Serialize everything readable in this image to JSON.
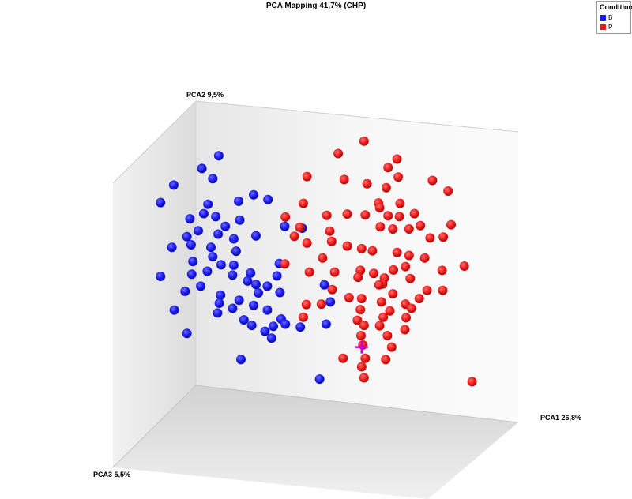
{
  "chart_data": {
    "type": "scatter",
    "title": "PCA Mapping 41,7% (CHP)",
    "axes": {
      "pca1_label": "PCA1 26,8%",
      "pca2_label": "PCA2 9,5%",
      "pca3_label": "PCA3 5,5%"
    },
    "legend": {
      "title": "Condition",
      "placement": "top-right",
      "entries": [
        {
          "name": "B",
          "color": "#1a1aee"
        },
        {
          "name": "P",
          "color": "#ee1a1a"
        }
      ]
    },
    "x_range": [
      0,
      100
    ],
    "y_range": [
      0,
      100
    ],
    "note_units": "projected screen-plane PCA scores (relative)",
    "series": [
      {
        "name": "B",
        "color": "#1a1aee",
        "points": [
          [
            33.8,
            74.6
          ],
          [
            31.0,
            71.6
          ],
          [
            32.8,
            69.2
          ],
          [
            26.3,
            67.7
          ],
          [
            24.1,
            63.6
          ],
          [
            39.6,
            65.4
          ],
          [
            42.0,
            64.3
          ],
          [
            37.1,
            63.9
          ],
          [
            32.0,
            63.2
          ],
          [
            31.3,
            61.0
          ],
          [
            29.0,
            59.8
          ],
          [
            33.3,
            60.3
          ],
          [
            37.3,
            59.5
          ],
          [
            34.9,
            58.0
          ],
          [
            30.4,
            57.0
          ],
          [
            28.5,
            55.6
          ],
          [
            33.7,
            56.2
          ],
          [
            40.0,
            55.8
          ],
          [
            44.8,
            58.0
          ],
          [
            47.7,
            57.6
          ],
          [
            36.3,
            55.1
          ],
          [
            32.5,
            53.1
          ],
          [
            29.2,
            53.7
          ],
          [
            26.0,
            53.1
          ],
          [
            36.7,
            52.2
          ],
          [
            32.8,
            50.9
          ],
          [
            29.5,
            49.8
          ],
          [
            34.2,
            49.0
          ],
          [
            36.3,
            48.9
          ],
          [
            31.9,
            47.5
          ],
          [
            29.3,
            46.8
          ],
          [
            36.1,
            46.6
          ],
          [
            43.9,
            49.3
          ],
          [
            39.1,
            47.1
          ],
          [
            38.6,
            45.2
          ],
          [
            40.0,
            44.4
          ],
          [
            43.5,
            46.4
          ],
          [
            41.9,
            44.0
          ],
          [
            40.4,
            42.4
          ],
          [
            30.8,
            44.0
          ],
          [
            28.2,
            42.8
          ],
          [
            34.1,
            41.9
          ],
          [
            44.0,
            42.5
          ],
          [
            37.2,
            40.7
          ],
          [
            33.9,
            40.0
          ],
          [
            26.4,
            38.4
          ],
          [
            36.1,
            38.8
          ],
          [
            39.6,
            39.5
          ],
          [
            33.6,
            37.7
          ],
          [
            41.9,
            38.4
          ],
          [
            38.0,
            36.1
          ],
          [
            44.2,
            36.3
          ],
          [
            39.3,
            34.8
          ],
          [
            42.9,
            34.6
          ],
          [
            44.9,
            35.1
          ],
          [
            28.5,
            32.9
          ],
          [
            41.5,
            33.4
          ],
          [
            47.4,
            34.4
          ],
          [
            42.6,
            31.8
          ],
          [
            37.5,
            26.8
          ],
          [
            51.7,
            35.1
          ],
          [
            52.4,
            40.3
          ],
          [
            51.4,
            44.3
          ],
          [
            50.6,
            22.2
          ],
          [
            24.1,
            46.3
          ]
        ]
      },
      {
        "name": "P",
        "color": "#ee1a1a",
        "points": [
          [
            58.0,
            78.0
          ],
          [
            53.7,
            75.1
          ],
          [
            63.5,
            73.8
          ],
          [
            62.0,
            71.8
          ],
          [
            48.5,
            69.7
          ],
          [
            54.7,
            69.0
          ],
          [
            58.5,
            68.0
          ],
          [
            63.7,
            69.6
          ],
          [
            61.7,
            67.1
          ],
          [
            69.4,
            68.8
          ],
          [
            72.0,
            66.3
          ],
          [
            47.9,
            63.4
          ],
          [
            60.4,
            63.5
          ],
          [
            64.0,
            63.4
          ],
          [
            44.9,
            60.2
          ],
          [
            51.8,
            60.6
          ],
          [
            55.2,
            60.9
          ],
          [
            58.2,
            60.7
          ],
          [
            60.6,
            62.4
          ],
          [
            62.0,
            60.5
          ],
          [
            63.9,
            60.3
          ],
          [
            66.4,
            61.0
          ],
          [
            72.5,
            58.4
          ],
          [
            47.3,
            57.8
          ],
          [
            52.3,
            56.9
          ],
          [
            60.7,
            57.9
          ],
          [
            62.8,
            57.4
          ],
          [
            67.4,
            58.2
          ],
          [
            65.5,
            57.4
          ],
          [
            46.4,
            55.7
          ],
          [
            48.5,
            54.1
          ],
          [
            52.6,
            54.5
          ],
          [
            55.2,
            53.4
          ],
          [
            57.6,
            52.8
          ],
          [
            59.4,
            52.3
          ],
          [
            63.5,
            51.9
          ],
          [
            65.5,
            51.2
          ],
          [
            68.1,
            50.6
          ],
          [
            69.0,
            55.3
          ],
          [
            71.2,
            55.5
          ],
          [
            51.1,
            50.6
          ],
          [
            44.8,
            49.2
          ],
          [
            57.4,
            47.7
          ],
          [
            62.9,
            47.8
          ],
          [
            64.9,
            48.6
          ],
          [
            71.0,
            47.7
          ],
          [
            74.7,
            48.7
          ],
          [
            48.9,
            47.3
          ],
          [
            53.1,
            47.3
          ],
          [
            57.0,
            46.1
          ],
          [
            61.4,
            45.9
          ],
          [
            61.1,
            44.5
          ],
          [
            65.7,
            45.8
          ],
          [
            60.5,
            44.3
          ],
          [
            52.7,
            43.2
          ],
          [
            62.8,
            42.2
          ],
          [
            68.5,
            43.0
          ],
          [
            71.1,
            43.0
          ],
          [
            57.6,
            41.1
          ],
          [
            55.5,
            41.3
          ],
          [
            60.9,
            40.3
          ],
          [
            64.9,
            39.8
          ],
          [
            67.2,
            41.1
          ],
          [
            48.4,
            39.7
          ],
          [
            50.9,
            39.8
          ],
          [
            57.4,
            38.5
          ],
          [
            62.3,
            38.2
          ],
          [
            65.9,
            38.8
          ],
          [
            47.9,
            36.7
          ],
          [
            56.9,
            36.0
          ],
          [
            61.2,
            36.7
          ],
          [
            65.0,
            36.6
          ],
          [
            58.0,
            34.8
          ],
          [
            60.6,
            34.7
          ],
          [
            64.8,
            33.8
          ],
          [
            57.5,
            32.4
          ],
          [
            61.9,
            32.4
          ],
          [
            57.8,
            30.2
          ],
          [
            62.6,
            29.7
          ],
          [
            54.5,
            27.1
          ],
          [
            58.2,
            27.1
          ],
          [
            61.6,
            26.8
          ],
          [
            57.6,
            25.1
          ],
          [
            58.0,
            22.5
          ],
          [
            76.0,
            21.6
          ],
          [
            59.6,
            47.0
          ]
        ]
      }
    ],
    "highlight": {
      "marker": "cross",
      "color": "#cc00cc",
      "point": [
        57.6,
        29.7
      ]
    }
  }
}
